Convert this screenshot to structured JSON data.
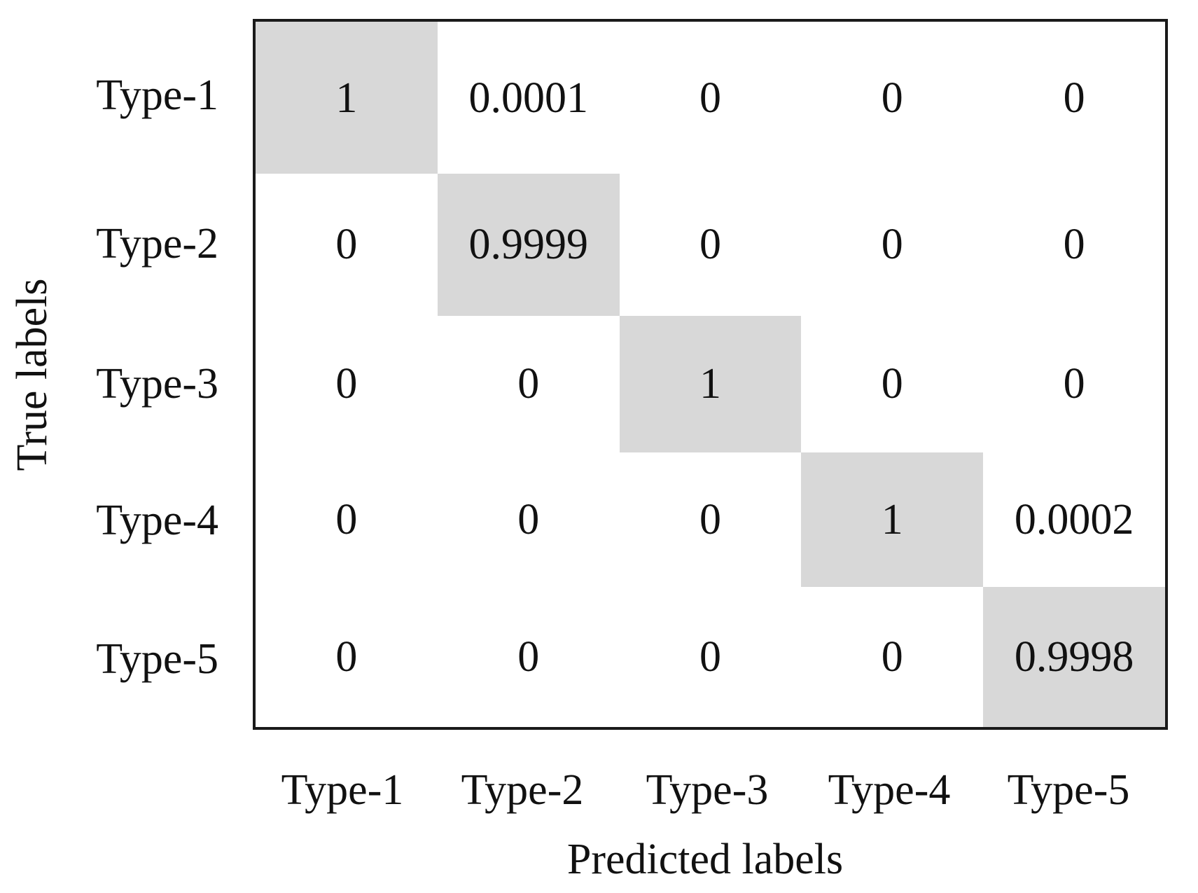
{
  "chart_data": {
    "type": "heatmap",
    "subtype": "confusion-matrix",
    "xlabel": "Predicted labels",
    "ylabel": "True labels",
    "x_tick_labels": [
      "Type-1",
      "Type-2",
      "Type-3",
      "Type-4",
      "Type-5"
    ],
    "y_tick_labels": [
      "Type-1",
      "Type-2",
      "Type-3",
      "Type-4",
      "Type-5"
    ],
    "matrix": [
      [
        1,
        0.0001,
        0,
        0,
        0
      ],
      [
        0,
        0.9999,
        0,
        0,
        0
      ],
      [
        0,
        0,
        1,
        0,
        0
      ],
      [
        0,
        0,
        0,
        1,
        0.0002
      ],
      [
        0,
        0,
        0,
        0,
        0.9998
      ]
    ],
    "cell_text": [
      [
        "1",
        "0.0001",
        "0",
        "0",
        "0"
      ],
      [
        "0",
        "0.9999",
        "0",
        "0",
        "0"
      ],
      [
        "0",
        "0",
        "1",
        "0",
        "0"
      ],
      [
        "0",
        "0",
        "0",
        "1",
        "0.0002"
      ],
      [
        "0",
        "0",
        "0",
        "0",
        "0.9998"
      ]
    ],
    "highlighted_cells": "diagonal",
    "value_range": [
      0,
      1
    ],
    "legend": "none",
    "grid": "off",
    "colors": {
      "diagonal_fill": "#d8d8d8",
      "cell_fill": "#ffffff",
      "border": "#1a1a1a",
      "text": "#111111",
      "background": "#ffffff"
    }
  }
}
